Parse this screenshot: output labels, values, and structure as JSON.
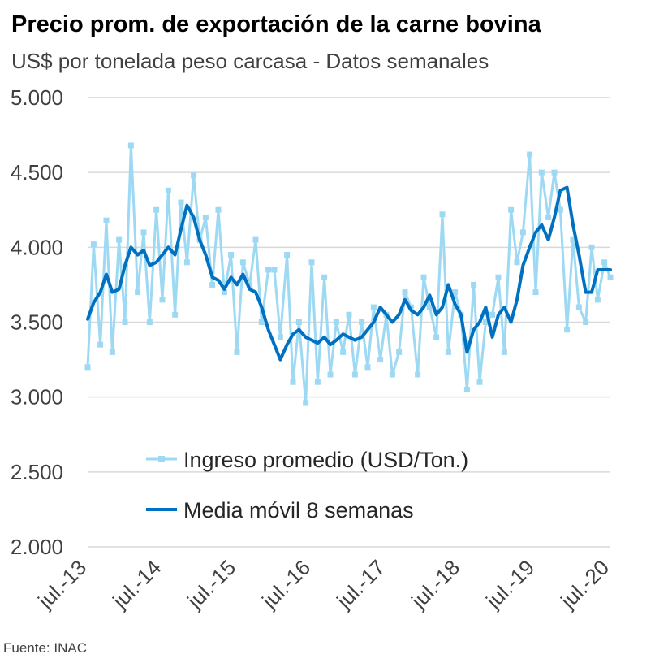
{
  "title": "Precio prom. de exportación de la carne bovina",
  "subtitle": "US$ por tonelada peso carcasa - Datos semanales",
  "source": "Fuente: INAC",
  "chart_data": {
    "type": "line",
    "ylim": [
      2000,
      5000
    ],
    "y_ticks": [
      2000,
      2500,
      3000,
      3500,
      4000,
      4500,
      5000
    ],
    "y_tick_labels": [
      "2.000",
      "2.500",
      "3.000",
      "3.500",
      "4.000",
      "4.500",
      "5.000"
    ],
    "x_tick_labels": [
      "jul.-13",
      "jul.-14",
      "jul.-15",
      "jul.-16",
      "jul.-17",
      "jul.-18",
      "jul.-19",
      "jul.-20"
    ],
    "x_range_years": [
      2013.5,
      2020.5
    ],
    "grid": true,
    "legend_position": "lower-left",
    "series": [
      {
        "name": "Ingreso promedio (USD/Ton.)",
        "color": "#9dd9f3",
        "marker": "square",
        "x": [
          2013.5,
          2013.58,
          2013.67,
          2013.75,
          2013.83,
          2013.92,
          2014.0,
          2014.08,
          2014.17,
          2014.25,
          2014.33,
          2014.42,
          2014.5,
          2014.58,
          2014.67,
          2014.75,
          2014.83,
          2014.92,
          2015.0,
          2015.08,
          2015.17,
          2015.25,
          2015.33,
          2015.42,
          2015.5,
          2015.58,
          2015.67,
          2015.75,
          2015.83,
          2015.92,
          2016.0,
          2016.08,
          2016.17,
          2016.25,
          2016.33,
          2016.42,
          2016.5,
          2016.58,
          2016.67,
          2016.75,
          2016.83,
          2016.92,
          2017.0,
          2017.08,
          2017.17,
          2017.25,
          2017.33,
          2017.42,
          2017.5,
          2017.58,
          2017.67,
          2017.75,
          2017.83,
          2017.92,
          2018.0,
          2018.08,
          2018.17,
          2018.25,
          2018.33,
          2018.42,
          2018.5,
          2018.58,
          2018.67,
          2018.75,
          2018.83,
          2018.92,
          2019.0,
          2019.08,
          2019.17,
          2019.25,
          2019.33,
          2019.42,
          2019.5,
          2019.58,
          2019.67,
          2019.75,
          2019.83,
          2019.92,
          2020.0,
          2020.08,
          2020.17,
          2020.25,
          2020.33,
          2020.42,
          2020.5
        ],
        "values": [
          3200,
          4020,
          3350,
          4180,
          3300,
          4050,
          3500,
          4680,
          3700,
          4100,
          3500,
          4250,
          3650,
          4380,
          3550,
          4300,
          3900,
          4480,
          4050,
          4200,
          3750,
          4250,
          3700,
          3950,
          3300,
          3900,
          3750,
          4050,
          3500,
          3850,
          3850,
          3400,
          3950,
          3100,
          3500,
          2960,
          3900,
          3100,
          3800,
          3150,
          3500,
          3300,
          3550,
          3150,
          3500,
          3200,
          3600,
          3250,
          3550,
          3150,
          3300,
          3700,
          3600,
          3150,
          3800,
          3600,
          3400,
          4220,
          3300,
          3700,
          3550,
          3050,
          3750,
          3100,
          3500,
          3550,
          3800,
          3300,
          4250,
          3900,
          4100,
          4620,
          3700,
          4500,
          4200,
          4500,
          4250,
          3450,
          4050,
          3600,
          3500,
          4000,
          3650,
          3900,
          3800
        ]
      },
      {
        "name": "Media móvil 8 semanas",
        "color": "#0070c0",
        "marker": "none",
        "x": [
          2013.5,
          2013.58,
          2013.67,
          2013.75,
          2013.83,
          2013.92,
          2014.0,
          2014.08,
          2014.17,
          2014.25,
          2014.33,
          2014.42,
          2014.5,
          2014.58,
          2014.67,
          2014.75,
          2014.83,
          2014.92,
          2015.0,
          2015.08,
          2015.17,
          2015.25,
          2015.33,
          2015.42,
          2015.5,
          2015.58,
          2015.67,
          2015.75,
          2015.83,
          2015.92,
          2016.0,
          2016.08,
          2016.17,
          2016.25,
          2016.33,
          2016.42,
          2016.5,
          2016.58,
          2016.67,
          2016.75,
          2016.83,
          2016.92,
          2017.0,
          2017.08,
          2017.17,
          2017.25,
          2017.33,
          2017.42,
          2017.5,
          2017.58,
          2017.67,
          2017.75,
          2017.83,
          2017.92,
          2018.0,
          2018.08,
          2018.17,
          2018.25,
          2018.33,
          2018.42,
          2018.5,
          2018.58,
          2018.67,
          2018.75,
          2018.83,
          2018.92,
          2019.0,
          2019.08,
          2019.17,
          2019.25,
          2019.33,
          2019.42,
          2019.5,
          2019.58,
          2019.67,
          2019.75,
          2019.83,
          2019.92,
          2020.0,
          2020.08,
          2020.17,
          2020.25,
          2020.33,
          2020.42,
          2020.5
        ],
        "values": [
          3520,
          3630,
          3700,
          3820,
          3700,
          3720,
          3880,
          4000,
          3950,
          3980,
          3880,
          3900,
          3950,
          4000,
          3950,
          4120,
          4280,
          4200,
          4050,
          3950,
          3800,
          3780,
          3720,
          3800,
          3750,
          3820,
          3720,
          3700,
          3600,
          3450,
          3350,
          3250,
          3350,
          3420,
          3450,
          3400,
          3380,
          3360,
          3400,
          3350,
          3380,
          3420,
          3400,
          3380,
          3400,
          3450,
          3500,
          3600,
          3550,
          3500,
          3550,
          3650,
          3580,
          3550,
          3600,
          3680,
          3550,
          3600,
          3750,
          3620,
          3550,
          3300,
          3450,
          3500,
          3600,
          3400,
          3550,
          3600,
          3500,
          3650,
          3880,
          4000,
          4100,
          4150,
          4050,
          4200,
          4380,
          4400,
          4150,
          3950,
          3700,
          3700,
          3850,
          3850,
          3850
        ]
      }
    ]
  }
}
